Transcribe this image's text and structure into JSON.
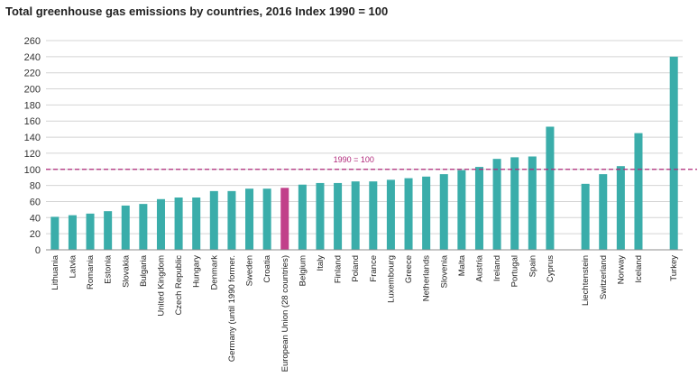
{
  "chart_data": {
    "type": "bar",
    "title": "Total greenhouse gas emissions by countries, 2016 Index 1990 = 100",
    "xlabel": "",
    "ylabel": "",
    "ylim": [
      0,
      260
    ],
    "yticks": [
      0,
      20,
      40,
      60,
      80,
      100,
      120,
      140,
      160,
      180,
      200,
      220,
      240,
      260
    ],
    "grid": true,
    "legend": "none",
    "reference_line": {
      "value": 100,
      "label": "1990 = 100",
      "color": "#b0287a"
    },
    "bar_color": "#3aadaa",
    "highlight_color": "#c1408a",
    "categories": [
      "Lithuania",
      "Latvia",
      "Romania",
      "Estonia",
      "Slovakia",
      "Bulgaria",
      "United Kingdom",
      "Czech Republic",
      "Hungary",
      "Denmark",
      "Germany (until 1990 former.",
      "Sweden",
      "Croatia",
      "European Union (28 countries)",
      "Belgium",
      "Italy",
      "Finland",
      "Poland",
      "France",
      "Luxembourg",
      "Greece",
      "Netherlands",
      "Slovenia",
      "Malta",
      "Austria",
      "Ireland",
      "Portugal",
      "Spain",
      "Cyprus",
      "",
      "Liechtenstein",
      "Switzerland",
      "Norway",
      "Iceland",
      "",
      "Turkey"
    ],
    "values": [
      41,
      43,
      45,
      48,
      55,
      57,
      63,
      65,
      65,
      73,
      73,
      76,
      76,
      77,
      81,
      83,
      83,
      85,
      85,
      87,
      89,
      91,
      94,
      99,
      103,
      113,
      115,
      116,
      153,
      null,
      82,
      94,
      104,
      145,
      null,
      240
    ],
    "highlight_index": 13
  }
}
